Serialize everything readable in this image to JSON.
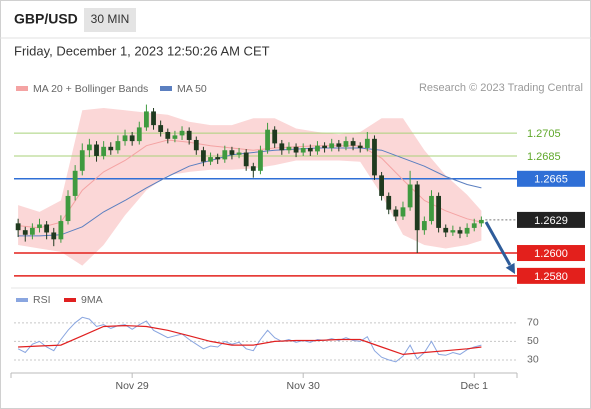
{
  "chart_data": [
    {
      "type": "candlestick",
      "title": "GBP/USD",
      "timeframe": "30 MIN",
      "subtitle": "Friday, December 1, 2023 12:50:26 AM CET",
      "source": "Research © 2023 Trading Central",
      "xlim": [
        -1,
        70
      ],
      "ylim": [
        1.2572,
        1.2734
      ],
      "candles": {
        "up_color": "#3f9a3f",
        "down_color": "#1f3a1f",
        "ohlc": [
          [
            1.2626,
            1.263,
            1.2614,
            1.262
          ],
          [
            1.262,
            1.2623,
            1.261,
            1.2616
          ],
          [
            1.2616,
            1.2626,
            1.2612,
            1.2622
          ],
          [
            1.2622,
            1.263,
            1.2618,
            1.2625
          ],
          [
            1.2625,
            1.2628,
            1.2612,
            1.2618
          ],
          [
            1.2618,
            1.2622,
            1.2606,
            1.2612
          ],
          [
            1.2612,
            1.2633,
            1.2609,
            1.2628
          ],
          [
            1.2628,
            1.2655,
            1.2625,
            1.265
          ],
          [
            1.265,
            1.2677,
            1.2646,
            1.2672
          ],
          [
            1.2672,
            1.2696,
            1.2668,
            1.269
          ],
          [
            1.269,
            1.27,
            1.2684,
            1.2695
          ],
          [
            1.2695,
            1.2698,
            1.268,
            1.2685
          ],
          [
            1.2685,
            1.2698,
            1.2682,
            1.2693
          ],
          [
            1.2693,
            1.2697,
            1.2686,
            1.269
          ],
          [
            1.269,
            1.2703,
            1.2687,
            1.2698
          ],
          [
            1.2698,
            1.2708,
            1.2694,
            1.2703
          ],
          [
            1.2703,
            1.2706,
            1.2694,
            1.2698
          ],
          [
            1.2698,
            1.2715,
            1.2695,
            1.271
          ],
          [
            1.271,
            1.273,
            1.2707,
            1.2724
          ],
          [
            1.2724,
            1.2727,
            1.2708,
            1.2712
          ],
          [
            1.2712,
            1.2716,
            1.2702,
            1.2706
          ],
          [
            1.2706,
            1.2709,
            1.2696,
            1.27
          ],
          [
            1.27,
            1.2707,
            1.2697,
            1.2703
          ],
          [
            1.2703,
            1.2711,
            1.2699,
            1.2707
          ],
          [
            1.2707,
            1.271,
            1.2695,
            1.2699
          ],
          [
            1.2699,
            1.2702,
            1.2686,
            1.269
          ],
          [
            1.269,
            1.2693,
            1.2676,
            1.268
          ],
          [
            1.268,
            1.2688,
            1.2677,
            1.2684
          ],
          [
            1.2684,
            1.2687,
            1.2678,
            1.2682
          ],
          [
            1.2682,
            1.2694,
            1.2679,
            1.269
          ],
          [
            1.269,
            1.2693,
            1.2682,
            1.2686
          ],
          [
            1.2686,
            1.2692,
            1.2683,
            1.2688
          ],
          [
            1.2688,
            1.2691,
            1.2672,
            1.2676
          ],
          [
            1.2676,
            1.2679,
            1.2666,
            1.2672
          ],
          [
            1.2672,
            1.2694,
            1.2669,
            1.269
          ],
          [
            1.269,
            1.2714,
            1.2687,
            1.2708
          ],
          [
            1.2708,
            1.2711,
            1.2692,
            1.2696
          ],
          [
            1.2696,
            1.2699,
            1.2686,
            1.269
          ],
          [
            1.269,
            1.2697,
            1.2687,
            1.2693
          ],
          [
            1.2693,
            1.2696,
            1.2684,
            1.2688
          ],
          [
            1.2688,
            1.2696,
            1.2685,
            1.2692
          ],
          [
            1.2692,
            1.2695,
            1.2685,
            1.2689
          ],
          [
            1.2689,
            1.2698,
            1.2686,
            1.2694
          ],
          [
            1.2694,
            1.2697,
            1.2688,
            1.2692
          ],
          [
            1.2692,
            1.27,
            1.2689,
            1.2696
          ],
          [
            1.2696,
            1.2699,
            1.2689,
            1.2693
          ],
          [
            1.2693,
            1.2702,
            1.269,
            1.2698
          ],
          [
            1.2698,
            1.2701,
            1.269,
            1.2694
          ],
          [
            1.2694,
            1.2697,
            1.2688,
            1.2692
          ],
          [
            1.2692,
            1.2706,
            1.2689,
            1.27
          ],
          [
            1.27,
            1.2703,
            1.2664,
            1.2668
          ],
          [
            1.2668,
            1.2671,
            1.2646,
            1.265
          ],
          [
            1.265,
            1.2653,
            1.2634,
            1.2638
          ],
          [
            1.2638,
            1.2641,
            1.2628,
            1.2632
          ],
          [
            1.2632,
            1.2645,
            1.2629,
            1.264
          ],
          [
            1.264,
            1.2672,
            1.2637,
            1.266
          ],
          [
            1.266,
            1.2663,
            1.26,
            1.262
          ],
          [
            1.262,
            1.2632,
            1.2616,
            1.2628
          ],
          [
            1.2628,
            1.2655,
            1.2625,
            1.265
          ],
          [
            1.265,
            1.2653,
            1.2618,
            1.2622
          ],
          [
            1.2622,
            1.2625,
            1.2614,
            1.2618
          ],
          [
            1.2618,
            1.2624,
            1.2615,
            1.262
          ],
          [
            1.262,
            1.2623,
            1.2613,
            1.2617
          ],
          [
            1.2617,
            1.2626,
            1.2614,
            1.2622
          ],
          [
            1.2622,
            1.263,
            1.2619,
            1.2626
          ],
          [
            1.2626,
            1.2632,
            1.2623,
            1.2629
          ]
        ]
      },
      "bands": {
        "name": "MA 20 + Bollinger Bands",
        "color": "#f4a3a3",
        "fill": "#fbd7d7",
        "x": [
          0,
          3,
          6,
          9,
          12,
          15,
          18,
          21,
          24,
          27,
          30,
          33,
          36,
          39,
          42,
          45,
          48,
          51,
          54,
          57,
          60,
          63,
          65
        ],
        "upper": [
          1.2642,
          1.2636,
          1.2646,
          1.2725,
          1.2727,
          1.2725,
          1.2723,
          1.2721,
          1.2715,
          1.2712,
          1.2712,
          1.2718,
          1.2718,
          1.2709,
          1.2706,
          1.2704,
          1.2706,
          1.2718,
          1.2718,
          1.269,
          1.2668,
          1.2651,
          1.2637
        ],
        "lower": [
          1.2607,
          1.2604,
          1.2601,
          1.2589,
          1.2607,
          1.2633,
          1.2655,
          1.2668,
          1.2671,
          1.2673,
          1.2673,
          1.2674,
          1.2677,
          1.2681,
          1.2681,
          1.2681,
          1.268,
          1.2651,
          1.2616,
          1.2607,
          1.2604,
          1.2607,
          1.2611
        ],
        "ma": [
          1.2624,
          1.2622,
          1.2627,
          1.2655,
          1.2671,
          1.2681,
          1.2694,
          1.2699,
          1.2697,
          1.2694,
          1.2692,
          1.269,
          1.2692,
          1.2693,
          1.2694,
          1.2694,
          1.2694,
          1.2683,
          1.2664,
          1.2646,
          1.2637,
          1.263,
          1.2627
        ]
      },
      "series": [
        {
          "name": "MA 50",
          "color": "#5b7fc0",
          "x": [
            0,
            3,
            6,
            9,
            12,
            15,
            18,
            21,
            24,
            27,
            30,
            33,
            36,
            39,
            42,
            45,
            48,
            51,
            54,
            57,
            60,
            63,
            65
          ],
          "values": [
            1.2615,
            1.2615,
            1.2616,
            1.2623,
            1.2636,
            1.2646,
            1.2657,
            1.2667,
            1.2676,
            1.2681,
            1.2686,
            1.2688,
            1.269,
            1.2691,
            1.2692,
            1.2692,
            1.2692,
            1.269,
            1.2683,
            1.2676,
            1.2667,
            1.266,
            1.2657
          ]
        }
      ],
      "levels": [
        {
          "value": 1.2705,
          "label": "1.2705",
          "color": "#a8d27a",
          "text_color": "#5fa82a",
          "style": "plain",
          "line_style": "solid"
        },
        {
          "value": 1.2685,
          "label": "1.2685",
          "color": "#a8d27a",
          "text_color": "#5fa82a",
          "style": "plain",
          "line_style": "solid"
        },
        {
          "value": 1.2665,
          "label": "1.2665",
          "color": "#2f6fd6",
          "text_color": "#ffffff",
          "style": "box",
          "line_style": "solid"
        },
        {
          "value": 1.2629,
          "label": "1.2629",
          "color": "#222222",
          "text_color": "#ffffff",
          "style": "box",
          "line_style": "dotted"
        },
        {
          "value": 1.26,
          "label": "1.2600",
          "color": "#e3201c",
          "text_color": "#ffffff",
          "style": "box",
          "line_style": "solid"
        },
        {
          "value": 1.258,
          "label": "1.2580",
          "color": "#e3201c",
          "text_color": "#ffffff",
          "style": "box",
          "line_style": "solid"
        }
      ]
    },
    {
      "type": "line",
      "xlim": [
        -1,
        70
      ],
      "xticks": [
        {
          "value": 16,
          "label": "Nov 29"
        },
        {
          "value": 40,
          "label": "Nov 30"
        },
        {
          "value": 64,
          "label": "Dec 1"
        }
      ],
      "ylim": [
        17,
        100
      ],
      "yticks": [
        30,
        50,
        70
      ],
      "grid": true,
      "series": [
        {
          "name": "RSI",
          "color": "#8aa6e0",
          "x": [
            0,
            1,
            2,
            3,
            4,
            5,
            6,
            7,
            8,
            9,
            10,
            11,
            12,
            13,
            14,
            15,
            16,
            17,
            18,
            19,
            20,
            21,
            22,
            23,
            24,
            25,
            26,
            27,
            28,
            29,
            30,
            31,
            32,
            33,
            34,
            35,
            36,
            37,
            38,
            39,
            40,
            41,
            42,
            43,
            44,
            45,
            46,
            47,
            48,
            49,
            50,
            51,
            52,
            53,
            54,
            55,
            56,
            57,
            58,
            59,
            60,
            61,
            62,
            63,
            64,
            65
          ],
          "values": [
            42,
            38,
            47,
            50,
            44,
            40,
            52,
            62,
            70,
            76,
            74,
            66,
            68,
            64,
            67,
            68,
            63,
            68,
            72,
            62,
            58,
            54,
            56,
            58,
            52,
            47,
            42,
            45,
            44,
            50,
            47,
            49,
            42,
            40,
            52,
            62,
            54,
            50,
            52,
            49,
            51,
            49,
            52,
            51,
            53,
            51,
            54,
            51,
            50,
            55,
            40,
            33,
            30,
            28,
            34,
            46,
            31,
            38,
            50,
            36,
            35,
            38,
            36,
            41,
            44,
            46
          ]
        },
        {
          "name": "9MA",
          "color": "#e02020",
          "x": [
            0,
            3,
            6,
            9,
            12,
            15,
            18,
            21,
            24,
            27,
            30,
            33,
            36,
            39,
            42,
            45,
            48,
            51,
            54,
            57,
            60,
            63,
            65
          ],
          "values": [
            44,
            45,
            46,
            56,
            66,
            67,
            66,
            62,
            56,
            50,
            46,
            46,
            50,
            51,
            51,
            52,
            52,
            44,
            36,
            38,
            40,
            42,
            44
          ]
        }
      ]
    }
  ]
}
